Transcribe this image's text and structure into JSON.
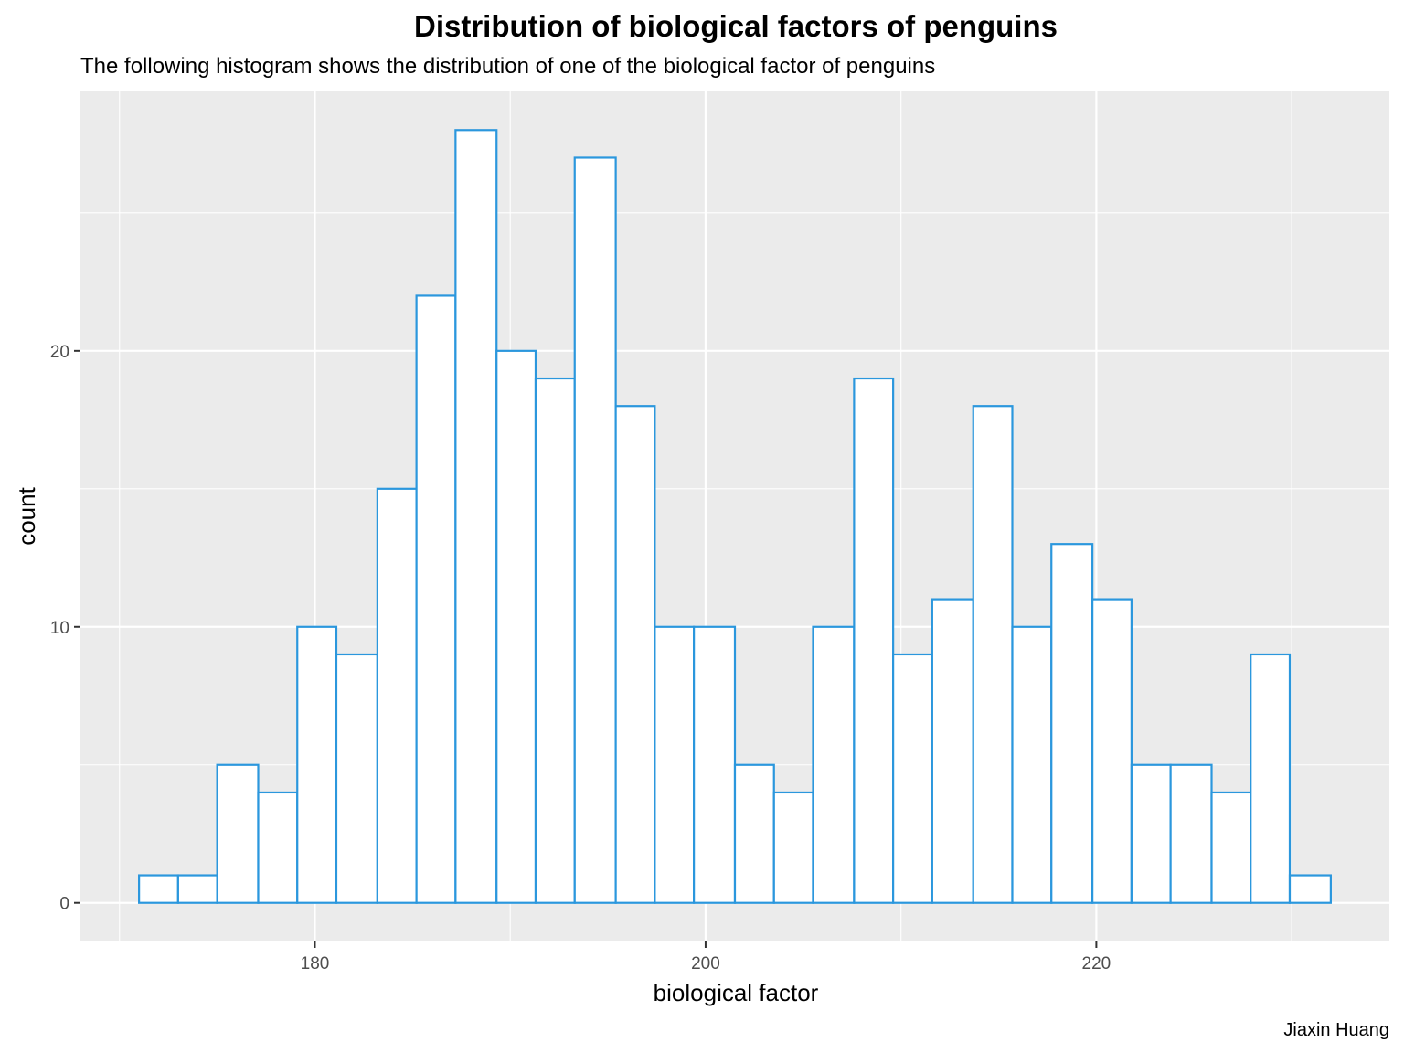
{
  "chart_data": {
    "type": "bar",
    "title": "Distribution of biological factors of penguins",
    "subtitle": "The following histogram shows the distribution of one of the biological factor of penguins",
    "xlabel": "biological factor",
    "ylabel": "count",
    "caption": "Jiaxin Huang",
    "bin_width": 2.03,
    "bins": [
      {
        "x0": 171.0,
        "x1": 173.0,
        "count": 1
      },
      {
        "x0": 173.0,
        "x1": 175.0,
        "count": 1
      },
      {
        "x0": 175.0,
        "x1": 177.1,
        "count": 5
      },
      {
        "x0": 177.1,
        "x1": 179.1,
        "count": 4
      },
      {
        "x0": 179.1,
        "x1": 181.1,
        "count": 10
      },
      {
        "x0": 181.1,
        "x1": 183.2,
        "count": 9
      },
      {
        "x0": 183.2,
        "x1": 185.2,
        "count": 15
      },
      {
        "x0": 185.2,
        "x1": 187.2,
        "count": 22
      },
      {
        "x0": 187.2,
        "x1": 189.3,
        "count": 28
      },
      {
        "x0": 189.3,
        "x1": 191.3,
        "count": 20
      },
      {
        "x0": 191.3,
        "x1": 193.3,
        "count": 19
      },
      {
        "x0": 193.3,
        "x1": 195.4,
        "count": 27
      },
      {
        "x0": 195.4,
        "x1": 197.4,
        "count": 18
      },
      {
        "x0": 197.4,
        "x1": 199.4,
        "count": 10
      },
      {
        "x0": 199.4,
        "x1": 201.5,
        "count": 10
      },
      {
        "x0": 201.5,
        "x1": 203.5,
        "count": 5
      },
      {
        "x0": 203.5,
        "x1": 205.5,
        "count": 4
      },
      {
        "x0": 205.5,
        "x1": 207.6,
        "count": 10
      },
      {
        "x0": 207.6,
        "x1": 209.6,
        "count": 19
      },
      {
        "x0": 209.6,
        "x1": 211.6,
        "count": 9
      },
      {
        "x0": 211.6,
        "x1": 213.7,
        "count": 11
      },
      {
        "x0": 213.7,
        "x1": 215.7,
        "count": 18
      },
      {
        "x0": 215.7,
        "x1": 217.7,
        "count": 10
      },
      {
        "x0": 217.7,
        "x1": 219.8,
        "count": 13
      },
      {
        "x0": 219.8,
        "x1": 221.8,
        "count": 11
      },
      {
        "x0": 221.8,
        "x1": 223.8,
        "count": 5
      },
      {
        "x0": 223.8,
        "x1": 225.9,
        "count": 5
      },
      {
        "x0": 225.9,
        "x1": 227.9,
        "count": 4
      },
      {
        "x0": 227.9,
        "x1": 229.9,
        "count": 9
      },
      {
        "x0": 229.9,
        "x1": 232.0,
        "count": 1
      }
    ],
    "x_ticks": [
      180,
      200,
      220
    ],
    "y_ticks": [
      0,
      10,
      20
    ],
    "xlim": [
      168.0,
      235.0
    ],
    "ylim": [
      -1.4,
      29.4
    ],
    "grid": true,
    "colors": {
      "panel": "#ebebeb",
      "grid": "#ffffff",
      "bar_fill": "#ffffff",
      "bar_outline": "#2b97dd"
    }
  }
}
